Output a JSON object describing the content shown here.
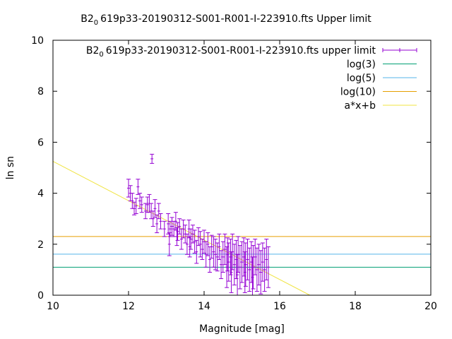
{
  "chart_data": {
    "type": "scatter",
    "title": "B2_0619p33-20190312-S001-R001-I-223910.fts Upper limit",
    "title_parts": {
      "pre": "B2",
      "sub": "0",
      "post": "619p33-20190312-S001-R001-I-223910.fts Upper limit"
    },
    "xlabel": "Magnitude [mag]",
    "ylabel": "ln sn",
    "xlim": [
      10,
      20
    ],
    "ylim": [
      0,
      10
    ],
    "xticks": [
      "10",
      "12",
      "14",
      "16",
      "18",
      "20"
    ],
    "yticks": [
      "0",
      "2",
      "4",
      "6",
      "8",
      "10"
    ],
    "grid": false,
    "legend_position": "top-right",
    "legend": [
      {
        "key": "data",
        "pre": "B2",
        "sub": "0",
        "post": "619p33-20190312-S001-R001-I-223910.fts upper limit",
        "color": "#9400d3"
      },
      {
        "key": "log3",
        "label": "log(3)",
        "color": "#009e73"
      },
      {
        "key": "log5",
        "label": "log(5)",
        "color": "#56b4e9"
      },
      {
        "key": "log10",
        "label": "log(10)",
        "color": "#e69f00"
      },
      {
        "key": "fit",
        "label": "a*x+b",
        "color": "#f0e442"
      }
    ],
    "hlines": [
      {
        "key": "log3",
        "y": 1.0986,
        "color": "#009e73"
      },
      {
        "key": "log5",
        "y": 1.6094,
        "color": "#56b4e9"
      },
      {
        "key": "log10",
        "y": 2.3026,
        "color": "#e69f00"
      }
    ],
    "fit_line": {
      "x": [
        10,
        16.8
      ],
      "y": [
        5.25,
        0
      ],
      "color": "#f0e442"
    },
    "series": [
      {
        "key": "data",
        "color": "#9400d3",
        "points": [
          [
            12.0,
            4.2,
            0.35
          ],
          [
            12.05,
            4.0,
            0.3
          ],
          [
            12.1,
            3.7,
            0.3
          ],
          [
            12.15,
            3.4,
            0.25
          ],
          [
            12.2,
            3.5,
            0.3
          ],
          [
            12.25,
            4.25,
            0.3
          ],
          [
            12.3,
            3.7,
            0.3
          ],
          [
            12.35,
            3.55,
            0.3
          ],
          [
            12.45,
            3.3,
            0.3
          ],
          [
            12.5,
            3.55,
            0.3
          ],
          [
            12.55,
            3.6,
            0.35
          ],
          [
            12.6,
            3.3,
            0.3
          ],
          [
            12.62,
            5.35,
            0.18
          ],
          [
            12.65,
            3.0,
            0.3
          ],
          [
            12.7,
            3.4,
            0.35
          ],
          [
            12.75,
            2.8,
            0.35
          ],
          [
            12.8,
            3.3,
            0.3
          ],
          [
            12.85,
            2.9,
            0.3
          ],
          [
            12.95,
            2.6,
            0.3
          ],
          [
            13.05,
            2.8,
            0.4
          ],
          [
            13.08,
            2.0,
            0.45
          ],
          [
            13.1,
            2.6,
            0.3
          ],
          [
            13.15,
            2.7,
            0.35
          ],
          [
            13.2,
            2.6,
            0.3
          ],
          [
            13.25,
            2.9,
            0.35
          ],
          [
            13.28,
            2.3,
            0.35
          ],
          [
            13.3,
            2.5,
            0.35
          ],
          [
            13.35,
            2.7,
            0.3
          ],
          [
            13.4,
            2.2,
            0.4
          ],
          [
            13.45,
            2.6,
            0.35
          ],
          [
            13.5,
            2.4,
            0.35
          ],
          [
            13.55,
            2.0,
            0.4
          ],
          [
            13.6,
            2.6,
            0.35
          ],
          [
            13.62,
            1.9,
            0.4
          ],
          [
            13.65,
            2.2,
            0.4
          ],
          [
            13.7,
            2.4,
            0.35
          ],
          [
            13.75,
            2.1,
            0.45
          ],
          [
            13.8,
            1.7,
            0.45
          ],
          [
            13.85,
            2.3,
            0.35
          ],
          [
            13.9,
            2.0,
            0.5
          ],
          [
            13.95,
            1.8,
            0.4
          ],
          [
            14.0,
            2.1,
            0.45
          ],
          [
            14.05,
            1.6,
            0.5
          ],
          [
            14.1,
            2.0,
            0.45
          ],
          [
            14.15,
            1.4,
            0.5
          ],
          [
            14.2,
            1.9,
            0.45
          ],
          [
            14.25,
            1.7,
            0.6
          ],
          [
            14.3,
            1.6,
            0.6
          ],
          [
            14.35,
            1.5,
            0.55
          ],
          [
            14.4,
            1.9,
            0.5
          ],
          [
            14.45,
            1.2,
            0.55
          ],
          [
            14.5,
            1.5,
            0.6
          ],
          [
            14.55,
            1.8,
            0.6
          ],
          [
            14.6,
            1.1,
            0.8
          ],
          [
            14.62,
            1.6,
            0.65
          ],
          [
            14.65,
            1.3,
            0.75
          ],
          [
            14.7,
            1.5,
            0.7
          ],
          [
            14.72,
            0.9,
            0.8
          ],
          [
            14.75,
            1.7,
            0.7
          ],
          [
            14.8,
            1.2,
            0.8
          ],
          [
            14.85,
            1.4,
            0.75
          ],
          [
            14.88,
            0.8,
            0.8
          ],
          [
            14.9,
            1.6,
            0.7
          ],
          [
            14.95,
            1.1,
            0.85
          ],
          [
            15.0,
            1.3,
            0.8
          ],
          [
            15.05,
            1.5,
            0.75
          ],
          [
            15.08,
            0.9,
            0.8
          ],
          [
            15.1,
            1.2,
            0.85
          ],
          [
            15.15,
            1.4,
            0.8
          ],
          [
            15.2,
            1.0,
            0.85
          ],
          [
            15.25,
            1.3,
            0.8
          ],
          [
            15.28,
            0.7,
            0.8
          ],
          [
            15.3,
            1.1,
            0.85
          ],
          [
            15.35,
            1.5,
            0.7
          ],
          [
            15.4,
            1.0,
            0.85
          ],
          [
            15.45,
            1.2,
            0.8
          ],
          [
            15.5,
            0.9,
            0.85
          ],
          [
            15.55,
            1.3,
            0.75
          ],
          [
            15.6,
            1.0,
            0.85
          ],
          [
            15.65,
            1.4,
            0.8
          ],
          [
            15.7,
            1.1,
            0.8
          ]
        ]
      }
    ]
  }
}
